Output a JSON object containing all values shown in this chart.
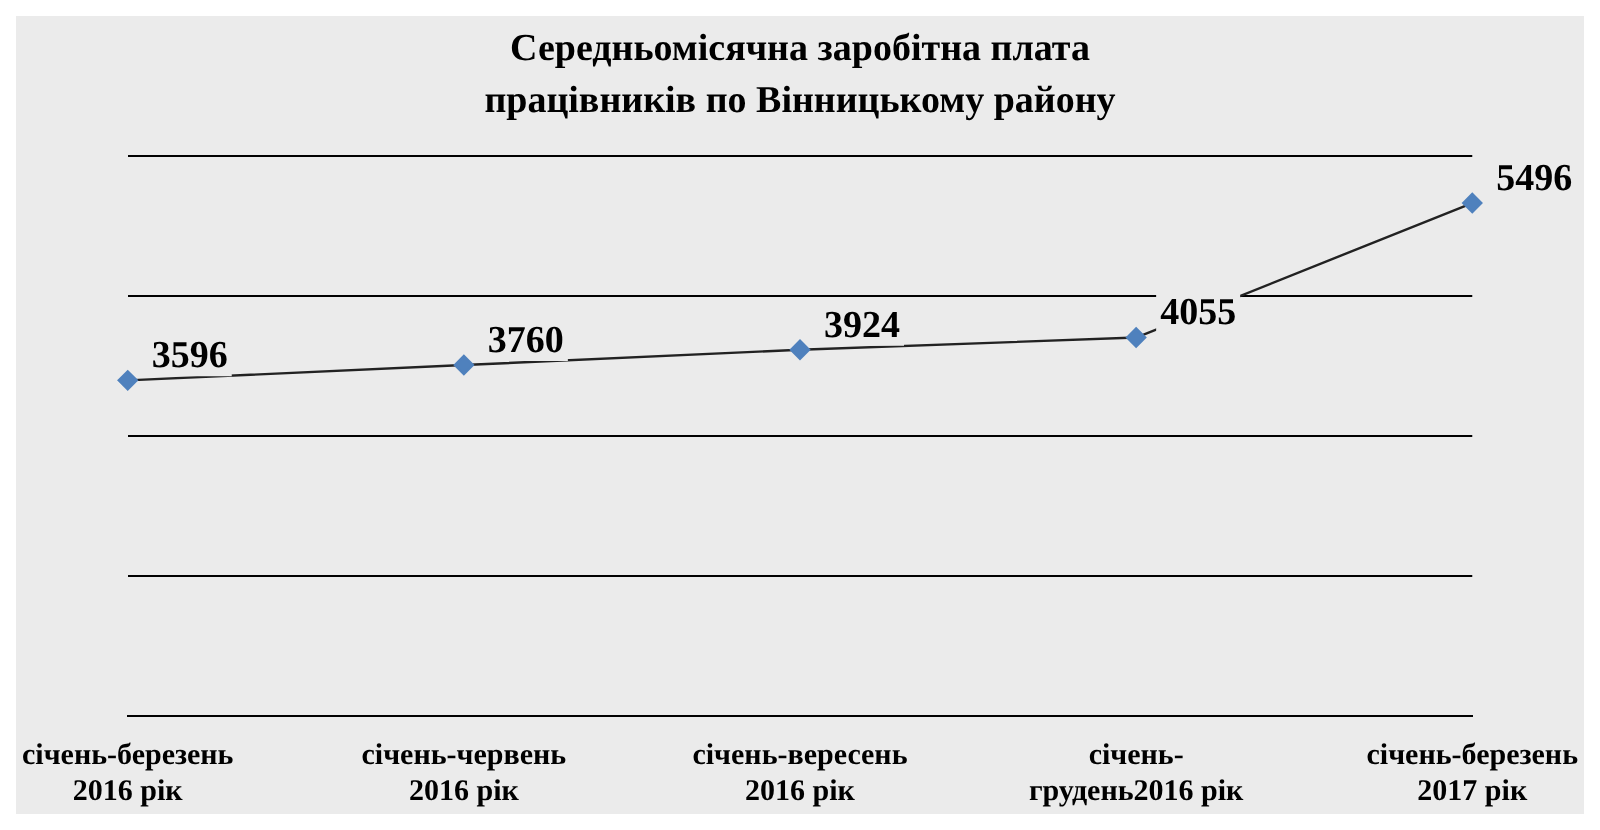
{
  "chart_data": {
    "type": "line",
    "title": "Середньомісячна заробітна плата працівників по Вінницькому району",
    "categories": [
      "січень-березень 2016 рік",
      "січень-червень 2016 рік",
      "січень-вересень 2016 рік",
      "січень-грудень2016 рік",
      "січень-березень 2017 рік"
    ],
    "series": [
      {
        "color": "#4f81bd",
        "values": [
          3596,
          3760,
          3924,
          4055,
          5496
        ]
      }
    ],
    "ylim": [
      0,
      6000
    ],
    "yticks": [
      {
        "value": 0,
        "label": null
      },
      {
        "value": 1500,
        "label": null
      },
      {
        "value": 3000,
        "label": null
      },
      {
        "value": 4500,
        "label": null
      },
      {
        "value": 6000,
        "label": null
      }
    ],
    "tick_labels": "x",
    "grid": "y",
    "marker": "diamond",
    "line_style": "solid",
    "data_labels": true,
    "legend": false
  }
}
